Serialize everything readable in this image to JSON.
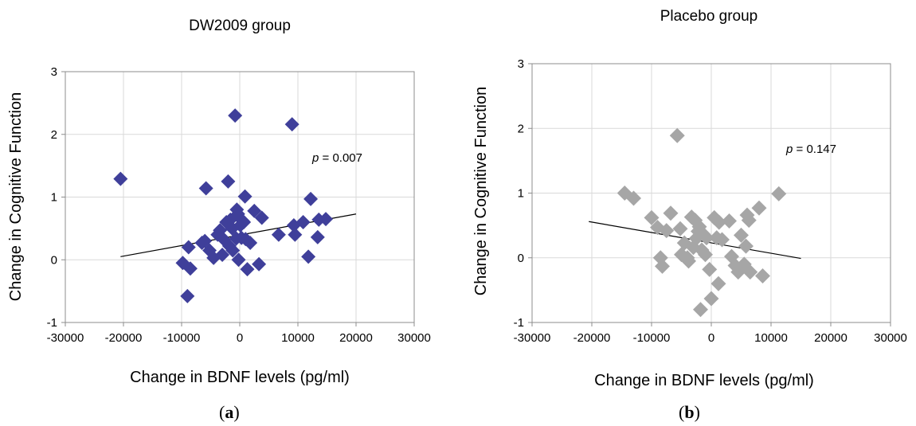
{
  "chart_data": [
    {
      "type": "scatter",
      "title": "DW2009 group",
      "xlabel": "Change in BDNF levels (pg/ml)",
      "ylabel": "Change in Cognitive Function",
      "xlim": [
        -30000,
        30000
      ],
      "ylim": [
        -1,
        3
      ],
      "xticks": [
        -30000,
        -20000,
        -10000,
        0,
        10000,
        20000,
        30000
      ],
      "yticks": [
        -1,
        0,
        1,
        2,
        3
      ],
      "grid": true,
      "marker_color": "#3f3f9a",
      "annotation": {
        "p_symbol": "p",
        "text": " = 0.007"
      },
      "panel_label": {
        "open": "(",
        "letter": "a",
        "close": ")"
      },
      "trendline": {
        "x": [
          -20500,
          20000
        ],
        "y": [
          0.05,
          0.73
        ]
      },
      "points": [
        [
          -20500,
          1.29
        ],
        [
          -9800,
          -0.05
        ],
        [
          -9000,
          -0.58
        ],
        [
          -8800,
          0.2
        ],
        [
          -8500,
          -0.14
        ],
        [
          -6500,
          0.27
        ],
        [
          -6000,
          0.3
        ],
        [
          -5800,
          1.14
        ],
        [
          -5200,
          0.15
        ],
        [
          -4500,
          0.03
        ],
        [
          -3800,
          0.4
        ],
        [
          -3400,
          0.47
        ],
        [
          -3000,
          0.08
        ],
        [
          -2700,
          0.32
        ],
        [
          -2300,
          0.6
        ],
        [
          -2000,
          1.25
        ],
        [
          -1800,
          0.22
        ],
        [
          -1600,
          0.64
        ],
        [
          -1300,
          0.5
        ],
        [
          -1200,
          0.15
        ],
        [
          -800,
          2.3
        ],
        [
          -600,
          0.34
        ],
        [
          -500,
          0.8
        ],
        [
          -300,
          0.73
        ],
        [
          -200,
          0.0
        ],
        [
          100,
          0.55
        ],
        [
          300,
          0.35
        ],
        [
          500,
          0.62
        ],
        [
          700,
          0.6
        ],
        [
          900,
          1.01
        ],
        [
          1000,
          0.33
        ],
        [
          1300,
          -0.15
        ],
        [
          1800,
          0.27
        ],
        [
          2500,
          0.78
        ],
        [
          3300,
          -0.07
        ],
        [
          3800,
          0.67
        ],
        [
          6700,
          0.4
        ],
        [
          9000,
          2.16
        ],
        [
          9300,
          0.55
        ],
        [
          9500,
          0.4
        ],
        [
          10900,
          0.6
        ],
        [
          11800,
          0.05
        ],
        [
          12200,
          0.97
        ],
        [
          13400,
          0.36
        ],
        [
          13600,
          0.64
        ],
        [
          14800,
          0.65
        ]
      ]
    },
    {
      "type": "scatter",
      "title": "Placebo group",
      "xlabel": "Change in BDNF levels (pg/ml)",
      "ylabel": "Change in Cognitive Function",
      "xlim": [
        -30000,
        30000
      ],
      "ylim": [
        -1,
        3
      ],
      "xticks": [
        -30000,
        -20000,
        -10000,
        0,
        10000,
        20000,
        30000
      ],
      "yticks": [
        -1,
        0,
        1,
        2,
        3
      ],
      "grid": true,
      "marker_color": "#a6a6a6",
      "annotation": {
        "p_symbol": "p",
        "text": " = 0.147"
      },
      "panel_label": {
        "open": "(",
        "letter": "b",
        "close": ")"
      },
      "trendline": {
        "x": [
          -20500,
          15000
        ],
        "y": [
          0.56,
          -0.01
        ]
      },
      "points": [
        [
          -14500,
          1.0
        ],
        [
          -13000,
          0.92
        ],
        [
          -10000,
          0.62
        ],
        [
          -9000,
          0.47
        ],
        [
          -8500,
          0.0
        ],
        [
          -8200,
          -0.13
        ],
        [
          -7500,
          0.42
        ],
        [
          -6800,
          0.69
        ],
        [
          -5700,
          1.89
        ],
        [
          -5200,
          0.45
        ],
        [
          -5000,
          0.05
        ],
        [
          -4500,
          0.23
        ],
        [
          -4000,
          0.0
        ],
        [
          -3800,
          -0.05
        ],
        [
          -3300,
          0.63
        ],
        [
          -3000,
          0.16
        ],
        [
          -2700,
          0.58
        ],
        [
          -2500,
          0.3
        ],
        [
          -2200,
          0.41
        ],
        [
          -2000,
          0.48
        ],
        [
          -1800,
          -0.8
        ],
        [
          -1600,
          0.12
        ],
        [
          -1400,
          0.37
        ],
        [
          -1000,
          0.05
        ],
        [
          -800,
          0.31
        ],
        [
          -300,
          -0.18
        ],
        [
          0,
          -0.63
        ],
        [
          500,
          0.62
        ],
        [
          900,
          0.31
        ],
        [
          1200,
          -0.4
        ],
        [
          1300,
          0.55
        ],
        [
          1800,
          0.28
        ],
        [
          3000,
          0.57
        ],
        [
          3400,
          0.02
        ],
        [
          4000,
          -0.12
        ],
        [
          4500,
          -0.22
        ],
        [
          5000,
          0.35
        ],
        [
          5500,
          -0.1
        ],
        [
          5800,
          0.18
        ],
        [
          6000,
          0.66
        ],
        [
          6500,
          -0.22
        ],
        [
          6300,
          0.58
        ],
        [
          8000,
          0.77
        ],
        [
          8600,
          -0.28
        ],
        [
          11300,
          0.99
        ]
      ]
    }
  ]
}
